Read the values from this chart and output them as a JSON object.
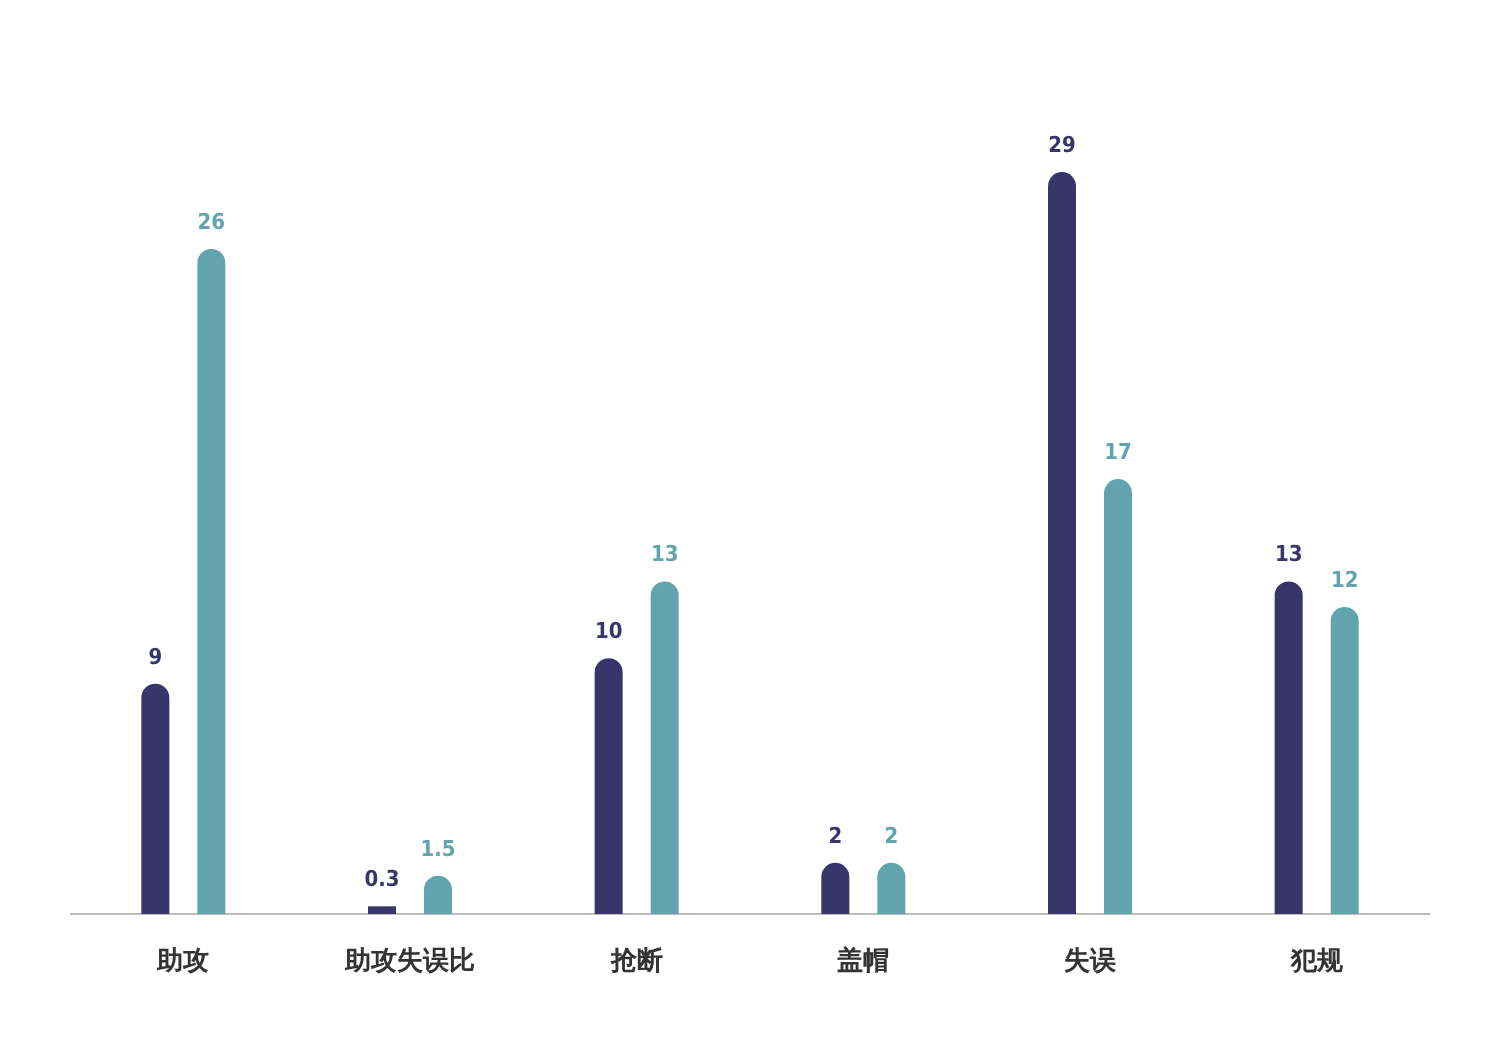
{
  "chart_data": {
    "type": "bar",
    "categories": [
      "助攻",
      "助攻失误比",
      "抢断",
      "盖帽",
      "失误",
      "犯规"
    ],
    "series": [
      {
        "color": "#37356a",
        "values": [
          9,
          0.3,
          10,
          2,
          29,
          13
        ]
      },
      {
        "color": "#62a4ad",
        "values": [
          26,
          1.5,
          13,
          2,
          17,
          12
        ]
      }
    ],
    "data_labels": true
  }
}
